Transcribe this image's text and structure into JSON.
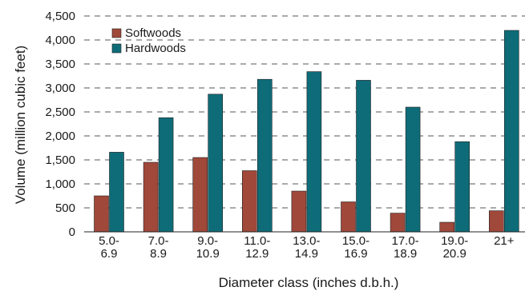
{
  "chart_data": {
    "type": "bar",
    "title": "",
    "xlabel": "Diameter class (inches d.b.h.)",
    "ylabel": "Volume (million cubic feet)",
    "ylim": [
      0,
      4500
    ],
    "yticks": [
      0,
      500,
      1000,
      1500,
      2000,
      2500,
      3000,
      3500,
      4000,
      4500
    ],
    "ytick_labels": [
      "0",
      "500",
      "1,000",
      "1,500",
      "2,000",
      "2,500",
      "3,000",
      "3,500",
      "4,000",
      "4,500"
    ],
    "grid": "horizontal dashed",
    "legend_position": "top-left",
    "categories": [
      [
        "5.0-",
        "6.9"
      ],
      [
        "7.0-",
        "8.9"
      ],
      [
        "9.0-",
        "10.9"
      ],
      [
        "11.0-",
        "12.9"
      ],
      [
        "13.0-",
        "14.9"
      ],
      [
        "15.0-",
        "16.9"
      ],
      [
        "17.0-",
        "18.9"
      ],
      [
        "19.0-",
        "20.9"
      ],
      [
        "21+"
      ]
    ],
    "series": [
      {
        "name": "Softwoods",
        "color": "#a0483a",
        "values": [
          750,
          1450,
          1550,
          1275,
          850,
          625,
          390,
          200,
          440
        ]
      },
      {
        "name": "Hardwoods",
        "color": "#0e6c78",
        "values": [
          1660,
          2380,
          2870,
          3180,
          3340,
          3160,
          2600,
          1880,
          4200
        ]
      }
    ]
  }
}
